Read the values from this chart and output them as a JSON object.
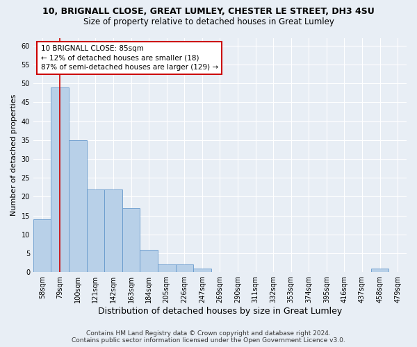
{
  "title_line1": "10, BRIGNALL CLOSE, GREAT LUMLEY, CHESTER LE STREET, DH3 4SU",
  "title_line2": "Size of property relative to detached houses in Great Lumley",
  "xlabel": "Distribution of detached houses by size in Great Lumley",
  "ylabel": "Number of detached properties",
  "categories": [
    "58sqm",
    "79sqm",
    "100sqm",
    "121sqm",
    "142sqm",
    "163sqm",
    "184sqm",
    "205sqm",
    "226sqm",
    "247sqm",
    "269sqm",
    "290sqm",
    "311sqm",
    "332sqm",
    "353sqm",
    "374sqm",
    "395sqm",
    "416sqm",
    "437sqm",
    "458sqm",
    "479sqm"
  ],
  "values": [
    14,
    49,
    35,
    22,
    22,
    17,
    6,
    2,
    2,
    1,
    0,
    0,
    0,
    0,
    0,
    0,
    0,
    0,
    0,
    1,
    0
  ],
  "bar_color": "#b8d0e8",
  "bar_edge_color": "#6699cc",
  "annotation_text_line1": "10 BRIGNALL CLOSE: 85sqm",
  "annotation_text_line2": "← 12% of detached houses are smaller (18)",
  "annotation_text_line3": "87% of semi-detached houses are larger (129) →",
  "annotation_box_facecolor": "#ffffff",
  "annotation_box_edgecolor": "#cc0000",
  "vline_color": "#cc0000",
  "vline_x_index": 1,
  "ylim": [
    0,
    62
  ],
  "yticks": [
    0,
    5,
    10,
    15,
    20,
    25,
    30,
    35,
    40,
    45,
    50,
    55,
    60
  ],
  "footer_line1": "Contains HM Land Registry data © Crown copyright and database right 2024.",
  "footer_line2": "Contains public sector information licensed under the Open Government Licence v3.0.",
  "bg_color": "#e8eef5",
  "grid_color": "#ffffff",
  "title_fontsize": 9,
  "subtitle_fontsize": 8.5,
  "ylabel_fontsize": 8,
  "xlabel_fontsize": 9,
  "tick_fontsize": 7,
  "annotation_fontsize": 7.5,
  "footer_fontsize": 6.5
}
